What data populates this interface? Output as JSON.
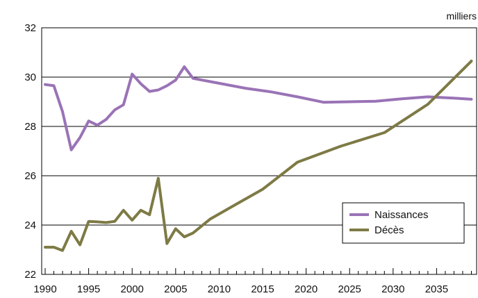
{
  "chart_data": {
    "type": "line",
    "ylabel": "milliers",
    "xlim": [
      1989.6,
      2039.6
    ],
    "ylim": [
      22,
      32
    ],
    "y_ticks": [
      22,
      24,
      26,
      28,
      30,
      32
    ],
    "y_tick_labels": [
      "22",
      "24",
      "26",
      "28",
      "30",
      "32"
    ],
    "x_major_ticks": [
      1990,
      1995,
      2000,
      2005,
      2010,
      2015,
      2020,
      2025,
      2030,
      2035
    ],
    "x_tick_labels": [
      "1990",
      "1995",
      "2000",
      "2005",
      "2010",
      "2015",
      "2020",
      "2025",
      "2030",
      "2035"
    ],
    "grid": true,
    "legend_position": "bottom-right",
    "series": [
      {
        "name": "Naissances",
        "color": "#9A73B6",
        "x": [
          1990,
          1991,
          1992,
          1993,
          1994,
          1995,
          1996,
          1997,
          1998,
          1999,
          2000,
          2001,
          2002,
          2003,
          2004,
          2005,
          2006,
          2007,
          2010,
          2013,
          2016,
          2019,
          2022,
          2025,
          2028,
          2031,
          2034,
          2037,
          2039
        ],
        "values": [
          29.7,
          29.65,
          28.6,
          27.05,
          27.55,
          28.22,
          28.05,
          28.28,
          28.67,
          28.88,
          30.12,
          29.73,
          29.42,
          29.48,
          29.65,
          29.88,
          30.42,
          29.95,
          29.75,
          29.55,
          29.4,
          29.2,
          28.98,
          29.0,
          29.02,
          29.12,
          29.2,
          29.15,
          29.1
        ]
      },
      {
        "name": "Décès",
        "color": "#7E7A45",
        "x": [
          1990,
          1991,
          1992,
          1993,
          1994,
          1995,
          1996,
          1997,
          1998,
          1999,
          2000,
          2001,
          2002,
          2003,
          2004,
          2005,
          2006,
          2007,
          2009,
          2012,
          2015,
          2019,
          2024,
          2029,
          2034,
          2039
        ],
        "values": [
          23.1,
          23.1,
          22.97,
          23.75,
          23.2,
          24.15,
          24.13,
          24.1,
          24.15,
          24.6,
          24.2,
          24.6,
          24.42,
          25.9,
          23.25,
          23.85,
          23.52,
          23.68,
          24.25,
          24.85,
          25.45,
          26.55,
          27.2,
          27.75,
          28.9,
          30.65
        ]
      }
    ]
  }
}
